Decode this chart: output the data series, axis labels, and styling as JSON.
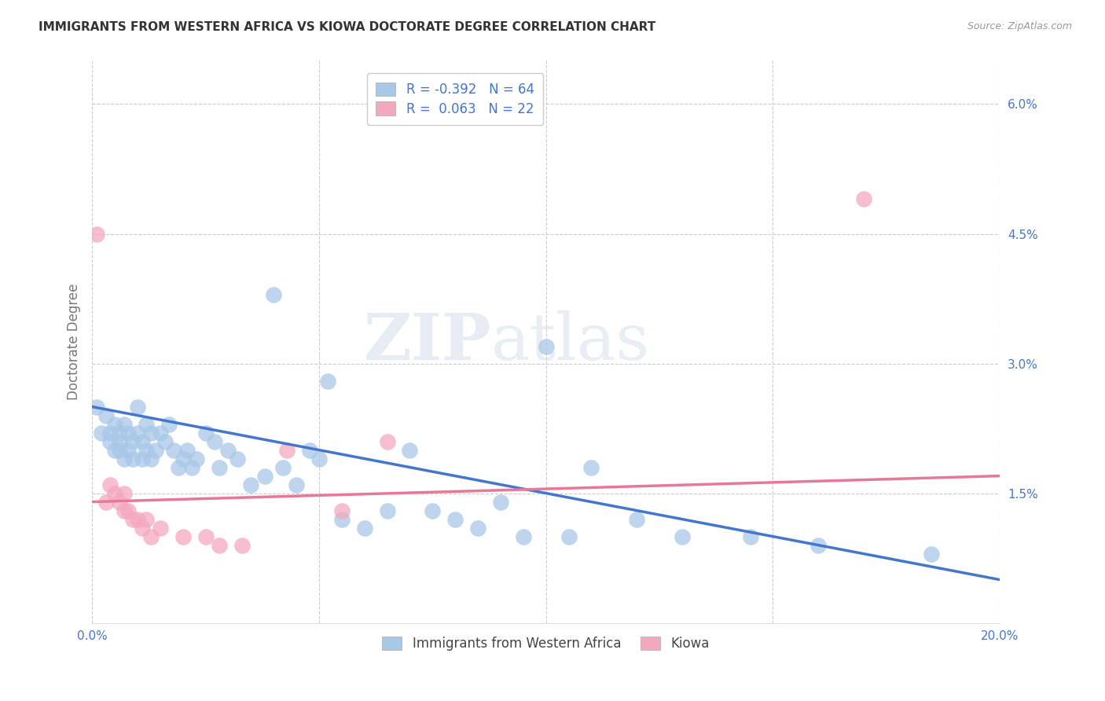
{
  "title": "IMMIGRANTS FROM WESTERN AFRICA VS KIOWA DOCTORATE DEGREE CORRELATION CHART",
  "source": "Source: ZipAtlas.com",
  "ylabel": "Doctorate Degree",
  "xlim": [
    0.0,
    0.2
  ],
  "ylim": [
    0.0,
    0.065
  ],
  "yticks_right": [
    0.015,
    0.03,
    0.045,
    0.06
  ],
  "yticklabels_right": [
    "1.5%",
    "3.0%",
    "4.5%",
    "6.0%"
  ],
  "legend_R1": "-0.392",
  "legend_N1": "64",
  "legend_R2": "0.063",
  "legend_N2": "22",
  "color_blue": "#a8c8e8",
  "color_pink": "#f4a8be",
  "line_color_blue": "#4477cc",
  "line_color_pink": "#e87898",
  "bg_color": "#ffffff",
  "grid_color": "#cccccc",
  "axis_color": "#4477cc",
  "legend_label_blue": "Immigrants from Western Africa",
  "legend_label_pink": "Kiowa",
  "blue_scatter_x": [
    0.001,
    0.002,
    0.003,
    0.004,
    0.004,
    0.005,
    0.005,
    0.006,
    0.006,
    0.006,
    0.007,
    0.007,
    0.008,
    0.008,
    0.009,
    0.009,
    0.01,
    0.01,
    0.011,
    0.011,
    0.012,
    0.012,
    0.013,
    0.013,
    0.014,
    0.015,
    0.016,
    0.017,
    0.018,
    0.019,
    0.02,
    0.021,
    0.022,
    0.023,
    0.025,
    0.027,
    0.028,
    0.03,
    0.032,
    0.035,
    0.038,
    0.04,
    0.042,
    0.045,
    0.048,
    0.05,
    0.052,
    0.055,
    0.06,
    0.065,
    0.07,
    0.075,
    0.08,
    0.085,
    0.09,
    0.095,
    0.1,
    0.105,
    0.11,
    0.12,
    0.13,
    0.145,
    0.16,
    0.185
  ],
  "blue_scatter_y": [
    0.025,
    0.022,
    0.024,
    0.022,
    0.021,
    0.023,
    0.02,
    0.022,
    0.021,
    0.02,
    0.023,
    0.019,
    0.022,
    0.02,
    0.021,
    0.019,
    0.025,
    0.022,
    0.021,
    0.019,
    0.023,
    0.02,
    0.022,
    0.019,
    0.02,
    0.022,
    0.021,
    0.023,
    0.02,
    0.018,
    0.019,
    0.02,
    0.018,
    0.019,
    0.022,
    0.021,
    0.018,
    0.02,
    0.019,
    0.016,
    0.017,
    0.038,
    0.018,
    0.016,
    0.02,
    0.019,
    0.028,
    0.012,
    0.011,
    0.013,
    0.02,
    0.013,
    0.012,
    0.011,
    0.014,
    0.01,
    0.032,
    0.01,
    0.018,
    0.012,
    0.01,
    0.01,
    0.009,
    0.008
  ],
  "pink_scatter_x": [
    0.001,
    0.003,
    0.004,
    0.005,
    0.006,
    0.007,
    0.007,
    0.008,
    0.009,
    0.01,
    0.011,
    0.012,
    0.013,
    0.015,
    0.02,
    0.025,
    0.028,
    0.033,
    0.043,
    0.055,
    0.065,
    0.17
  ],
  "pink_scatter_y": [
    0.045,
    0.014,
    0.016,
    0.015,
    0.014,
    0.015,
    0.013,
    0.013,
    0.012,
    0.012,
    0.011,
    0.012,
    0.01,
    0.011,
    0.01,
    0.01,
    0.009,
    0.009,
    0.02,
    0.013,
    0.021,
    0.049
  ]
}
